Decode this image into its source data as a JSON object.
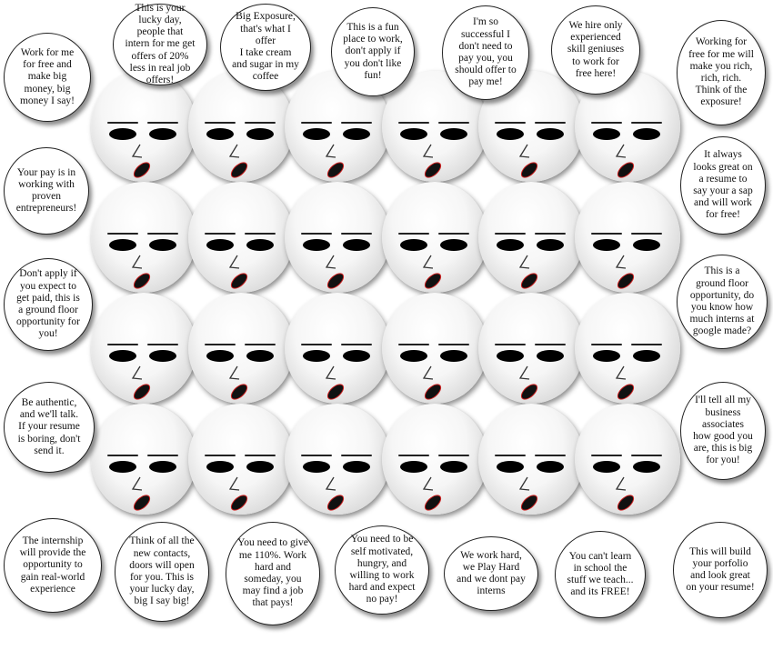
{
  "bubbles": {
    "b1": "Work for me for free and make big money, big money I say!",
    "b2": "This is your lucky day, people that intern for me  get offers of 20% less in real job offers!",
    "b3": "Big Exposure, that's what I offer\nI take cream and sugar in my coffee",
    "b4": "This is a fun place to work, don't apply if you don't like fun!",
    "b5": "I'm so successful I don't need to pay you, you should offer to pay me!",
    "b6": "We hire only experienced skill geniuses to work for free here!",
    "b7": "Working for free for me will make you rich, rich, rich. Think of the exposure!",
    "b8": "Your pay is in working with proven entrepreneurs!",
    "b9": "It always looks great on a resume to say your a sap and will work for free!",
    "b10": "Don't apply if you expect to get paid, this is a ground floor opportunity for you!",
    "b11": "This is a ground floor opportunity, do you know how much interns at google made?",
    "b12": "Be authentic, and we'll talk. If your resume is boring, don't send it.",
    "b13": "I'll tell all my business associates how good you are, this is big for you!",
    "b14": "The internship will provide the opportunity to gain real-world experience",
    "b15": "Think of all the new contacts, doors will open for you.  This is your lucky day, big I say big!",
    "b16": "You need to give me 110%.  Work hard and someday, you may find a  job that pays!",
    "b17": "You need to be self motivated, hungry, and willing to work hard and expect no pay!",
    "b18": "We work hard, we Play Hard and we dont pay interns",
    "b19": "You can't learn in school the stuff we teach... and its FREE!",
    "b20": "This will build your porfolio and look great on your resume!"
  },
  "colors": {
    "mouth_outline": "#d32222",
    "face_shadow": "#a9a9a9"
  },
  "icons": {
    "face": "cartoon-boss-face-icon"
  }
}
